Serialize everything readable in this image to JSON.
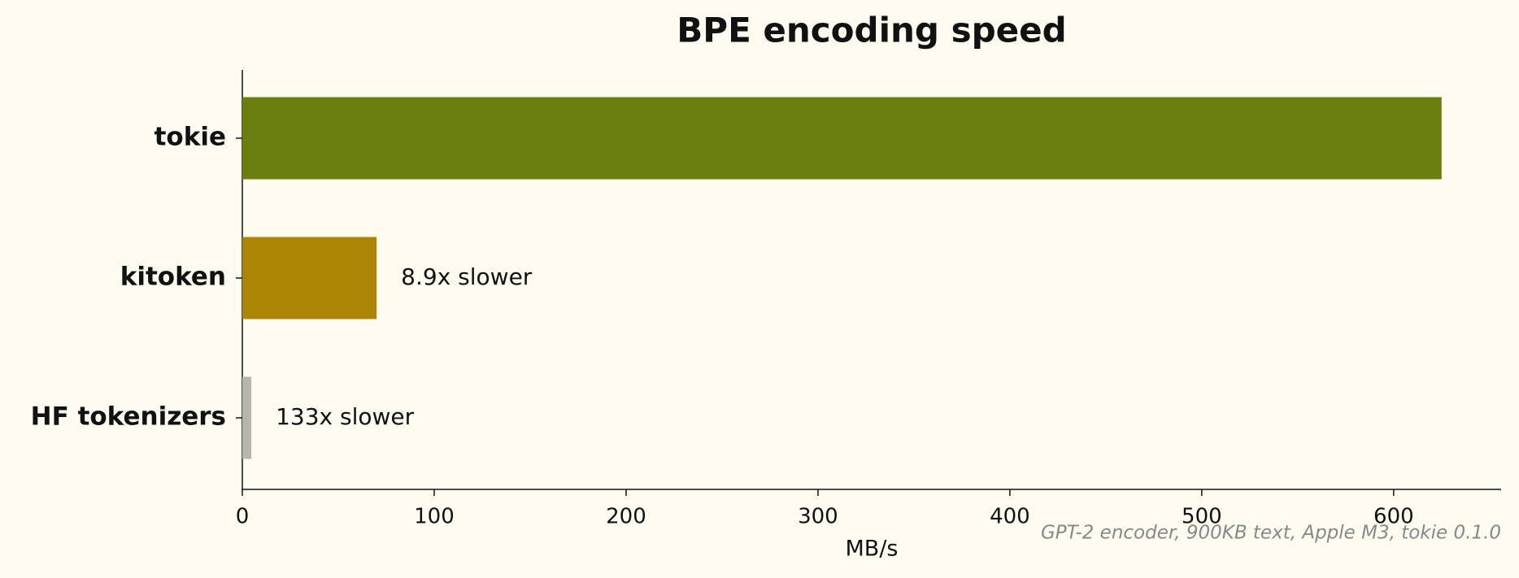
{
  "chart_data": {
    "type": "bar",
    "orientation": "horizontal",
    "title": "BPE encoding speed",
    "categories": [
      "tokie",
      "kitoken",
      "HF tokenizers"
    ],
    "values": [
      625,
      70,
      4.7
    ],
    "colors": [
      "#6b7f0e",
      "#ad8504",
      "#b8b5ac"
    ],
    "annotations": [
      null,
      "8.9x slower",
      "133x slower"
    ],
    "xlabel": "MB/s",
    "xlim": [
      0,
      656
    ],
    "xticks": [
      0,
      100,
      200,
      300,
      400,
      500,
      600
    ],
    "footnote": "GPT-2 encoder, 900KB text, Apple M3, tokie 0.1.0",
    "grid": false
  }
}
